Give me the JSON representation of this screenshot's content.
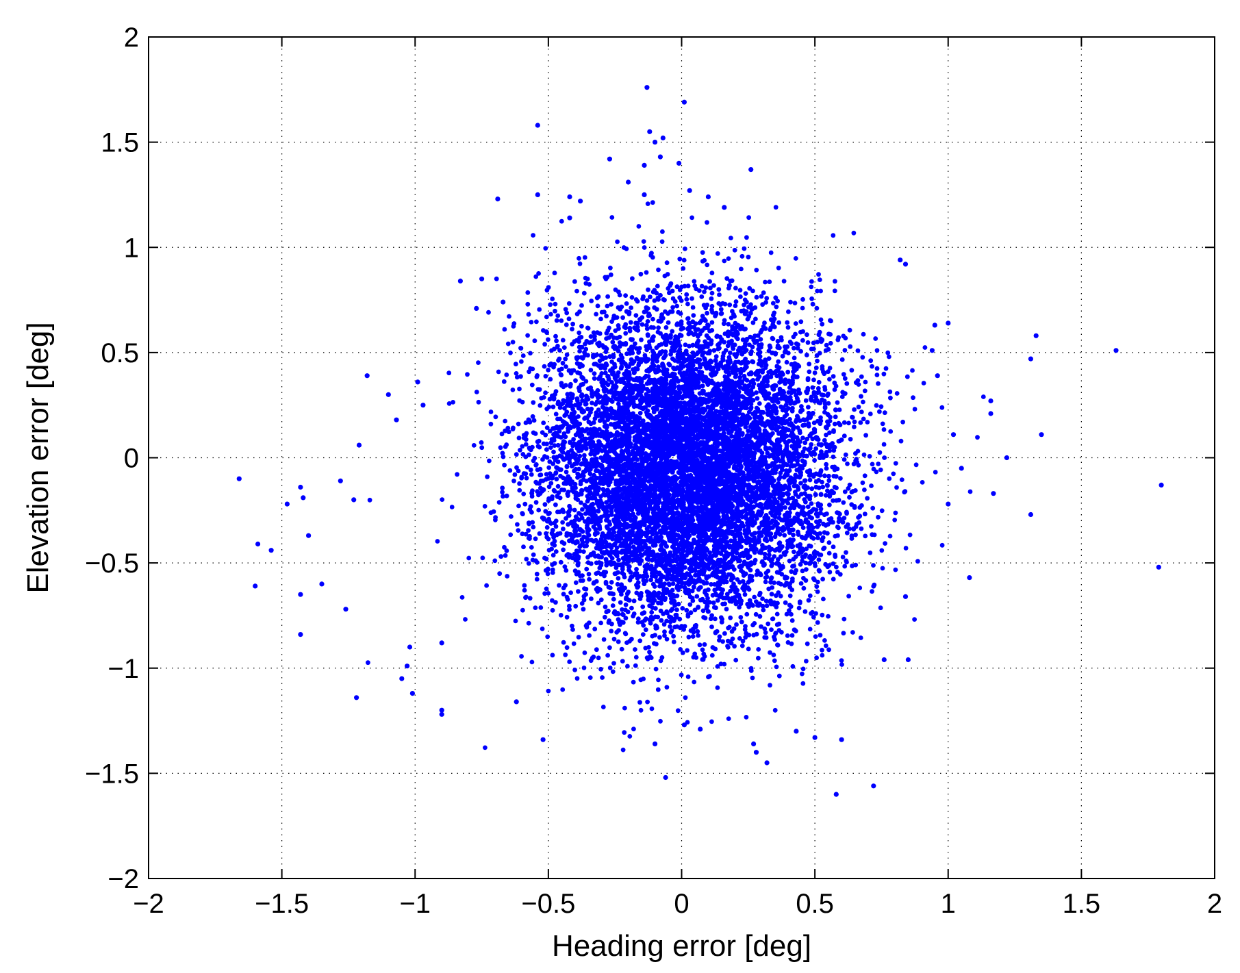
{
  "chart_data": {
    "type": "scatter",
    "title": "",
    "xlabel": "Heading error [deg]",
    "ylabel": "Elevation error [deg]",
    "xlim": [
      -2,
      2
    ],
    "ylim": [
      -2,
      2
    ],
    "grid": true,
    "grid_style": "dotted",
    "marker_color": "#0000ff",
    "x_ticks": [
      -2,
      -1.5,
      -1,
      -0.5,
      0,
      0.5,
      1,
      1.5,
      2
    ],
    "y_ticks": [
      -2,
      -1.5,
      -1,
      -0.5,
      0,
      0.5,
      1,
      1.5,
      2
    ],
    "x_tick_labels": [
      "−2",
      "−1.5",
      "−1",
      "−0.5",
      "0",
      "0.5",
      "1",
      "1.5",
      "2"
    ],
    "y_tick_labels": [
      "−2",
      "−1.5",
      "−1",
      "−0.5",
      "0",
      "0.5",
      "1",
      "1.5",
      "2"
    ],
    "cluster": {
      "center_x": 0.02,
      "center_y": -0.05,
      "sd_x": 0.28,
      "sd_y": 0.38,
      "count": 9000
    },
    "points": [
      {
        "x": -1.66,
        "y": -0.1
      },
      {
        "x": -1.6,
        "y": -0.61
      },
      {
        "x": -1.59,
        "y": -0.41
      },
      {
        "x": -1.54,
        "y": -0.44
      },
      {
        "x": -1.48,
        "y": -0.22
      },
      {
        "x": -1.43,
        "y": -0.14
      },
      {
        "x": -1.43,
        "y": -0.84
      },
      {
        "x": -1.43,
        "y": -0.65
      },
      {
        "x": -1.42,
        "y": -0.19
      },
      {
        "x": -1.4,
        "y": -0.37
      },
      {
        "x": -1.35,
        "y": -0.6
      },
      {
        "x": -1.28,
        "y": -0.11
      },
      {
        "x": -1.26,
        "y": -0.72
      },
      {
        "x": -1.23,
        "y": -0.2
      },
      {
        "x": -1.22,
        "y": -1.14
      },
      {
        "x": -1.21,
        "y": 0.06
      },
      {
        "x": -1.18,
        "y": 0.39
      },
      {
        "x": -1.1,
        "y": 0.3
      },
      {
        "x": -1.07,
        "y": 0.18
      },
      {
        "x": -1.05,
        "y": -1.05
      },
      {
        "x": -1.03,
        "y": -0.99
      },
      {
        "x": -1.02,
        "y": -0.9
      },
      {
        "x": -1.01,
        "y": -1.12
      },
      {
        "x": -0.99,
        "y": 0.36
      },
      {
        "x": -0.97,
        "y": 0.25
      },
      {
        "x": -0.9,
        "y": -1.22
      },
      {
        "x": -0.9,
        "y": -1.2
      },
      {
        "x": -0.9,
        "y": -0.88
      },
      {
        "x": -0.83,
        "y": 0.84
      },
      {
        "x": -0.77,
        "y": 0.71
      },
      {
        "x": -0.75,
        "y": 0.85
      },
      {
        "x": -0.69,
        "y": 1.23
      },
      {
        "x": -0.67,
        "y": 0.74
      },
      {
        "x": -0.62,
        "y": -1.16
      },
      {
        "x": -0.54,
        "y": 1.58
      },
      {
        "x": -0.54,
        "y": 1.25
      },
      {
        "x": -0.52,
        "y": -1.34
      },
      {
        "x": -0.42,
        "y": 1.24
      },
      {
        "x": -0.42,
        "y": 1.14
      },
      {
        "x": -0.38,
        "y": 1.22
      },
      {
        "x": -0.27,
        "y": 1.42
      },
      {
        "x": -0.2,
        "y": 1.31
      },
      {
        "x": -0.14,
        "y": 1.25
      },
      {
        "x": -0.14,
        "y": 1.39
      },
      {
        "x": -0.13,
        "y": 1.76
      },
      {
        "x": -0.12,
        "y": 1.55
      },
      {
        "x": -0.1,
        "y": 1.5
      },
      {
        "x": -0.08,
        "y": 1.43
      },
      {
        "x": -0.07,
        "y": 1.52
      },
      {
        "x": -0.1,
        "y": -1.36
      },
      {
        "x": -0.06,
        "y": -1.52
      },
      {
        "x": -0.01,
        "y": 1.4
      },
      {
        "x": 0.01,
        "y": 1.69
      },
      {
        "x": 0.03,
        "y": 1.27
      },
      {
        "x": 0.01,
        "y": -1.27
      },
      {
        "x": 0.07,
        "y": -1.29
      },
      {
        "x": 0.1,
        "y": 1.24
      },
      {
        "x": 0.16,
        "y": 1.19
      },
      {
        "x": 0.26,
        "y": 1.37
      },
      {
        "x": 0.27,
        "y": -1.36
      },
      {
        "x": 0.28,
        "y": -1.4
      },
      {
        "x": 0.32,
        "y": -1.45
      },
      {
        "x": 0.43,
        "y": -1.3
      },
      {
        "x": 0.5,
        "y": -1.33
      },
      {
        "x": 0.58,
        "y": -1.6
      },
      {
        "x": 0.6,
        "y": -1.34
      },
      {
        "x": 0.72,
        "y": -1.56
      },
      {
        "x": 0.76,
        "y": -0.96
      },
      {
        "x": 0.82,
        "y": 0.94
      },
      {
        "x": 0.84,
        "y": 0.92
      },
      {
        "x": 0.84,
        "y": -0.66
      },
      {
        "x": 0.85,
        "y": -0.96
      },
      {
        "x": 0.94,
        "y": 0.51
      },
      {
        "x": 0.95,
        "y": 0.63
      },
      {
        "x": 0.96,
        "y": 0.39
      },
      {
        "x": 1.0,
        "y": 0.64
      },
      {
        "x": 1.0,
        "y": -0.22
      },
      {
        "x": 1.02,
        "y": 0.11
      },
      {
        "x": 1.05,
        "y": -0.05
      },
      {
        "x": 1.08,
        "y": -0.57
      },
      {
        "x": 1.16,
        "y": 0.27
      },
      {
        "x": 1.16,
        "y": 0.21
      },
      {
        "x": 1.17,
        "y": -0.17
      },
      {
        "x": 1.22,
        "y": 0.0
      },
      {
        "x": 1.31,
        "y": 0.47
      },
      {
        "x": 1.31,
        "y": -0.27
      },
      {
        "x": 1.33,
        "y": 0.58
      },
      {
        "x": 1.35,
        "y": 0.11
      },
      {
        "x": 1.63,
        "y": 0.51
      },
      {
        "x": 1.79,
        "y": -0.52
      },
      {
        "x": 1.8,
        "y": -0.13
      }
    ]
  }
}
